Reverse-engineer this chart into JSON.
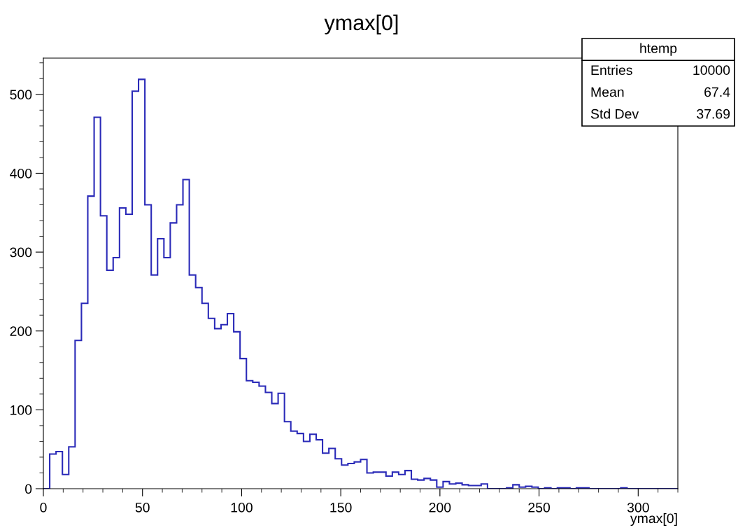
{
  "chart_data": {
    "type": "histogram",
    "title": "ymax[0]",
    "xlabel": "ymax[0]",
    "bins": [
      0,
      3.2,
      6.4,
      9.6,
      12.8,
      16,
      19.2,
      22.4,
      25.6,
      28.8,
      32,
      35.2,
      38.4,
      41.6,
      44.8,
      48,
      51.2,
      54.4,
      57.6,
      60.8,
      64,
      67.2,
      70.4,
      73.6,
      76.8,
      80,
      83.2,
      86.4,
      89.6,
      92.8,
      96,
      99.2,
      102.4,
      105.6,
      108.8,
      112,
      115.2,
      118.4,
      121.6,
      124.8,
      128,
      131.2,
      134.4,
      137.6,
      140.8,
      144,
      147.2,
      150.4,
      153.6,
      156.8,
      160,
      163.2,
      166.4,
      169.6,
      172.8,
      176,
      179.2,
      182.4,
      185.6,
      188.8,
      192,
      195.2,
      198.4,
      201.6,
      204.8,
      208,
      211.2,
      214.4,
      217.6,
      220.8,
      224,
      227.2,
      230.4,
      233.6,
      236.8,
      240,
      243.2,
      246.4,
      249.6,
      252.8,
      256,
      259.2,
      262.4,
      265.6,
      268.8,
      272,
      275.2,
      278.4,
      281.6,
      284.8,
      288,
      291.2,
      294.4,
      297.6,
      300.8,
      304,
      307.2,
      310.4,
      313.6,
      316.8,
      320
    ],
    "values": [
      0,
      44,
      47,
      18,
      53,
      188,
      235,
      371,
      471,
      346,
      277,
      293,
      356,
      348,
      504,
      519,
      360,
      271,
      317,
      293,
      337,
      360,
      392,
      271,
      255,
      235,
      216,
      203,
      208,
      222,
      199,
      165,
      137,
      135,
      130,
      122,
      108,
      121,
      85,
      73,
      70,
      60,
      69,
      62,
      45,
      51,
      38,
      30,
      32,
      34,
      37,
      20,
      21,
      21,
      16,
      21,
      18,
      23,
      12,
      11,
      13,
      11,
      2,
      9,
      6,
      7,
      5,
      4,
      4,
      6,
      0,
      0,
      0,
      1,
      5,
      2,
      3,
      2,
      0,
      1,
      0,
      1,
      1,
      0,
      1,
      1,
      0,
      0,
      0,
      0,
      0,
      1,
      0,
      0,
      0,
      0,
      0,
      0,
      0,
      0
    ],
    "color": "#2a2ab8",
    "xlim": [
      0,
      320
    ],
    "xticks": [
      0,
      50,
      100,
      150,
      200,
      250,
      300
    ],
    "ylim": [
      0,
      546
    ],
    "yticks": [
      0,
      100,
      200,
      300,
      400,
      500
    ],
    "grid": false,
    "annotations": [
      "htemp",
      "Entries",
      "10000",
      "Mean",
      "67.4",
      "Std Dev",
      "37.69"
    ]
  }
}
